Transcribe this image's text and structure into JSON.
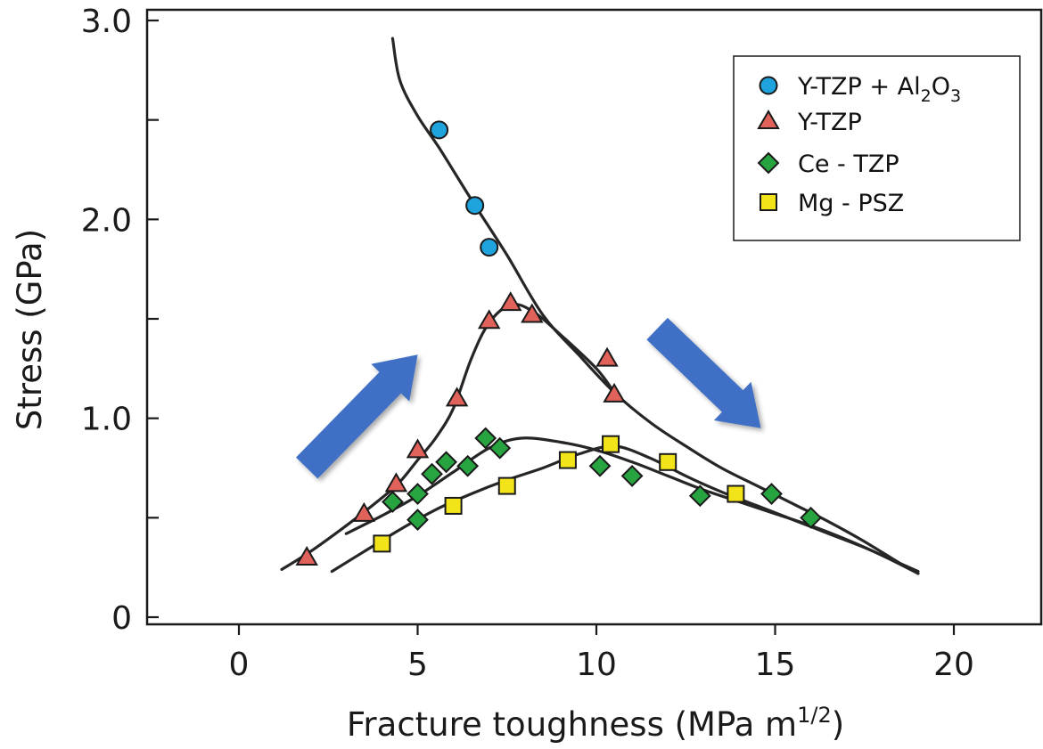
{
  "chart_data": {
    "type": "scatter",
    "xlabel": "Fracture toughness (MPa m",
    "xlabel_sup": "1/2",
    "xlabel_close": ")",
    "ylabel": "Stress (GPa)",
    "xlim": [
      -2.5,
      22.5
    ],
    "ylim": [
      0,
      3.05
    ],
    "x_ticks": [
      0,
      5,
      10,
      15,
      20
    ],
    "x_tick_labels": [
      "0",
      "5",
      "10",
      "15",
      "20"
    ],
    "y_ticks": [
      0,
      0.5,
      1.0,
      1.5,
      2.0,
      2.5,
      3.0
    ],
    "y_tick_labels": [
      "0",
      "",
      "1.0",
      "",
      "2.0",
      "",
      "3.0"
    ],
    "legend_position": "top-right",
    "series": [
      {
        "name": "Y-TZP + Al2O3",
        "legend_parts": [
          "Y-TZP + Al",
          "2",
          "O",
          "3"
        ],
        "marker": "circle",
        "color": "#1fa3dc",
        "points": [
          [
            5.6,
            2.45
          ],
          [
            6.6,
            2.07
          ],
          [
            7.0,
            1.86
          ]
        ],
        "curve": [
          [
            4.3,
            2.91
          ],
          [
            4.5,
            2.7
          ],
          [
            5.0,
            2.52
          ],
          [
            5.6,
            2.36
          ],
          [
            6.5,
            2.1
          ],
          [
            7.5,
            1.82
          ],
          [
            8.5,
            1.52
          ],
          [
            9.5,
            1.32
          ],
          [
            10.5,
            1.13
          ],
          [
            11.5,
            0.98
          ],
          [
            12.5,
            0.86
          ],
          [
            13.5,
            0.75
          ],
          [
            14.5,
            0.66
          ],
          [
            15.5,
            0.57
          ],
          [
            16.5,
            0.48
          ],
          [
            17.5,
            0.38
          ],
          [
            18.5,
            0.27
          ],
          [
            19.0,
            0.22
          ]
        ]
      },
      {
        "name": "Y-TZP",
        "marker": "triangle",
        "color": "#e0625a",
        "points": [
          [
            1.9,
            0.3
          ],
          [
            3.5,
            0.52
          ],
          [
            4.4,
            0.67
          ],
          [
            5.0,
            0.84
          ],
          [
            6.1,
            1.1
          ],
          [
            7.0,
            1.49
          ],
          [
            7.6,
            1.58
          ],
          [
            8.2,
            1.52
          ],
          [
            10.3,
            1.3
          ],
          [
            10.5,
            1.12
          ]
        ],
        "curve": [
          [
            1.2,
            0.24
          ],
          [
            2.0,
            0.33
          ],
          [
            3.0,
            0.46
          ],
          [
            4.0,
            0.6
          ],
          [
            4.5,
            0.68
          ],
          [
            5.0,
            0.79
          ],
          [
            5.5,
            0.9
          ],
          [
            6.0,
            1.05
          ],
          [
            6.5,
            1.3
          ],
          [
            7.0,
            1.48
          ],
          [
            7.6,
            1.57
          ],
          [
            8.2,
            1.54
          ],
          [
            9.0,
            1.42
          ],
          [
            10.0,
            1.25
          ],
          [
            10.5,
            1.13
          ]
        ]
      },
      {
        "name": "Ce - TZP",
        "marker": "diamond",
        "color": "#27a33f",
        "points": [
          [
            4.3,
            0.58
          ],
          [
            5.0,
            0.62
          ],
          [
            5.0,
            0.49
          ],
          [
            5.4,
            0.72
          ],
          [
            5.8,
            0.78
          ],
          [
            6.4,
            0.76
          ],
          [
            6.9,
            0.9
          ],
          [
            7.3,
            0.85
          ],
          [
            10.1,
            0.76
          ],
          [
            11.0,
            0.71
          ],
          [
            12.9,
            0.61
          ],
          [
            14.9,
            0.62
          ],
          [
            16.0,
            0.5
          ]
        ],
        "curve": [
          [
            3.0,
            0.42
          ],
          [
            4.0,
            0.51
          ],
          [
            5.0,
            0.61
          ],
          [
            6.0,
            0.73
          ],
          [
            7.0,
            0.85
          ],
          [
            7.9,
            0.9
          ],
          [
            9.0,
            0.88
          ],
          [
            10.0,
            0.84
          ],
          [
            11.0,
            0.78
          ],
          [
            12.0,
            0.71
          ],
          [
            13.0,
            0.64
          ],
          [
            14.0,
            0.58
          ],
          [
            15.0,
            0.52
          ],
          [
            16.0,
            0.46
          ],
          [
            17.0,
            0.39
          ],
          [
            18.0,
            0.31
          ],
          [
            19.0,
            0.22
          ]
        ]
      },
      {
        "name": "Mg - PSZ",
        "marker": "square",
        "color": "#f2e418",
        "points": [
          [
            4.0,
            0.37
          ],
          [
            6.0,
            0.56
          ],
          [
            7.5,
            0.66
          ],
          [
            9.2,
            0.79
          ],
          [
            10.4,
            0.87
          ],
          [
            12.0,
            0.78
          ],
          [
            13.9,
            0.62
          ]
        ],
        "curve": [
          [
            2.6,
            0.23
          ],
          [
            3.5,
            0.33
          ],
          [
            4.5,
            0.44
          ],
          [
            5.5,
            0.54
          ],
          [
            6.5,
            0.62
          ],
          [
            7.5,
            0.69
          ],
          [
            8.5,
            0.75
          ],
          [
            9.5,
            0.82
          ],
          [
            10.5,
            0.86
          ],
          [
            11.5,
            0.8
          ],
          [
            12.5,
            0.71
          ],
          [
            13.5,
            0.63
          ],
          [
            14.5,
            0.56
          ],
          [
            15.5,
            0.49
          ],
          [
            16.5,
            0.42
          ],
          [
            17.5,
            0.35
          ],
          [
            18.5,
            0.27
          ],
          [
            19.0,
            0.23
          ]
        ]
      }
    ],
    "arrows": [
      {
        "name": "rising-trend",
        "from": [
          1.9,
          0.75
        ],
        "to": [
          5.0,
          1.32
        ],
        "color": "#3f70c6"
      },
      {
        "name": "falling-trend",
        "from": [
          11.7,
          1.45
        ],
        "to": [
          14.6,
          0.95
        ],
        "color": "#3f70c6"
      }
    ]
  }
}
